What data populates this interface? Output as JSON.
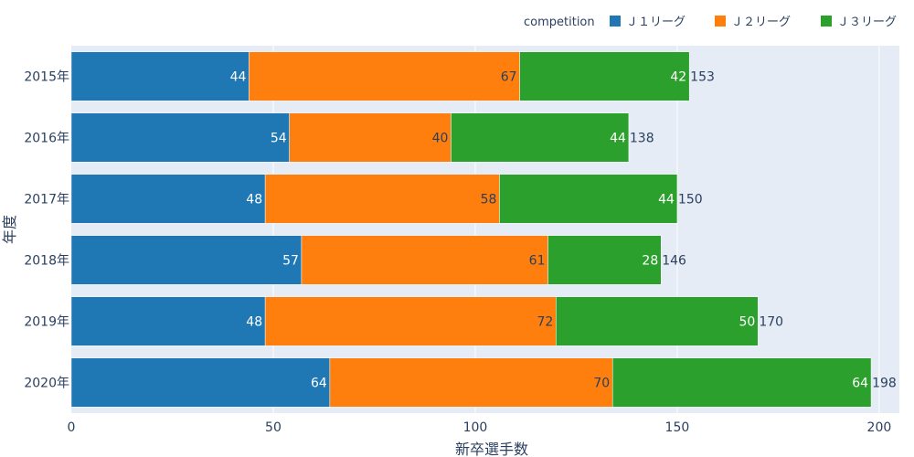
{
  "chart_data": {
    "type": "bar",
    "orientation": "horizontal",
    "stacked": true,
    "categories": [
      "2015年",
      "2016年",
      "2017年",
      "2018年",
      "2019年",
      "2020年"
    ],
    "series": [
      {
        "name": "Ｊ１リーグ",
        "color": "#1f77b4",
        "label_color": "#ffffff",
        "values": [
          44,
          54,
          48,
          57,
          48,
          64
        ]
      },
      {
        "name": "Ｊ２リーグ",
        "color": "#ff7f0e",
        "label_color": "#2a3f5f",
        "values": [
          67,
          40,
          58,
          61,
          72,
          70
        ]
      },
      {
        "name": "Ｊ３リーグ",
        "color": "#2ca02c",
        "label_color": "#ffffff",
        "values": [
          42,
          44,
          44,
          28,
          50,
          64
        ]
      }
    ],
    "totals": [
      153,
      138,
      150,
      146,
      170,
      198
    ],
    "xlabel": "新卒選手数",
    "ylabel": "年度",
    "xlim": [
      0,
      205
    ],
    "xticks": [
      0,
      50,
      100,
      150,
      200
    ],
    "legend_title": "competition",
    "legend_position": "top-right",
    "grid": true,
    "plot_bg": "#e5ecf6"
  }
}
